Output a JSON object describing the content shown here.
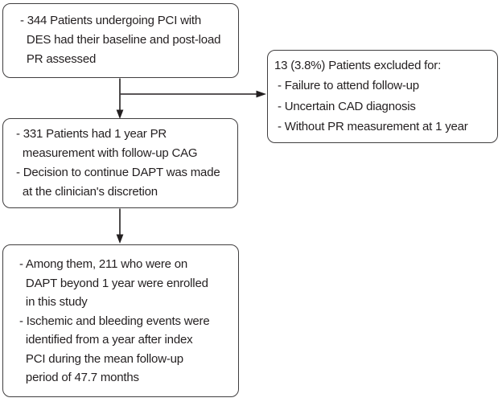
{
  "diagram": {
    "type": "flowchart",
    "boxes": {
      "enrollment": {
        "lines": [
          "- 344 Patients undergoing PCI with",
          "  DES had their baseline and post-load",
          "  PR assessed"
        ]
      },
      "excluded": {
        "lines": [
          "13 (3.8%) Patients excluded for:",
          " - Failure to attend follow-up",
          " - Uncertain CAD diagnosis",
          " - Without PR measurement at 1 year"
        ]
      },
      "one_year": {
        "lines": [
          "- 331 Patients had 1 year PR",
          "  measurement with follow-up CAG",
          "- Decision to continue DAPT was made",
          "  at the clinician's discretion"
        ]
      },
      "final": {
        "lines": [
          "- Among them, 211 who were on",
          "  DAPT beyond 1 year were enrolled",
          "  in this study",
          "- Ischemic and bleeding events were",
          "  identified from a year after index",
          "  PCI during the mean follow-up",
          "  period of 47.7 months"
        ]
      }
    },
    "colors": {
      "background": "#ffffff",
      "border": "#403e3f",
      "text": "#231f20",
      "arrow": "#231f20"
    }
  }
}
